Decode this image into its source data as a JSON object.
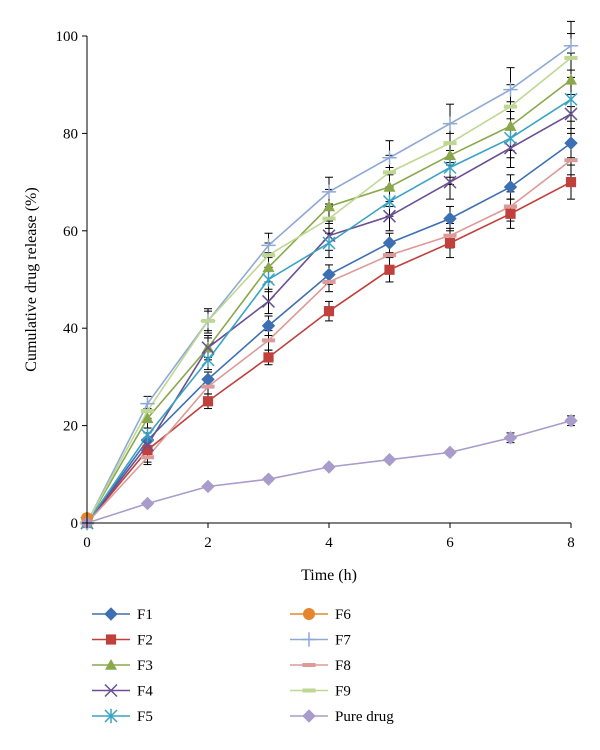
{
  "chart_data": {
    "type": "line",
    "title": "",
    "xlabel": "Time (h)",
    "ylabel": "Cumulative drug release (%)",
    "xlim": [
      0,
      8
    ],
    "ylim": [
      0,
      100
    ],
    "x_ticks": [
      "0",
      "2",
      "4",
      "6",
      "8"
    ],
    "y_ticks": [
      "0",
      "20",
      "40",
      "60",
      "80",
      "100"
    ],
    "grid": false,
    "legend_placement": "bottom",
    "x": [
      0,
      1,
      2,
      3,
      4,
      5,
      6,
      7,
      8
    ],
    "series": [
      {
        "name": "F1",
        "color": "#3d6fb3",
        "marker": "diamond",
        "values": [
          0,
          17,
          29.5,
          40.5,
          51,
          57.5,
          62.5,
          69,
          78
        ],
        "errors": [
          0,
          1.5,
          1.5,
          2,
          2,
          2,
          2.5,
          2.5,
          3
        ]
      },
      {
        "name": "F2",
        "color": "#c0403c",
        "marker": "square",
        "values": [
          0,
          15,
          25,
          34,
          43.5,
          52,
          57.5,
          63.5,
          70
        ],
        "errors": [
          0,
          2.5,
          1.5,
          1.5,
          2,
          2.5,
          3,
          3,
          3.5
        ]
      },
      {
        "name": "F3",
        "color": "#8aa84b",
        "marker": "triangle",
        "values": [
          0,
          21.5,
          36,
          52.5,
          65,
          69,
          75.5,
          81.5,
          91
        ],
        "errors": [
          0,
          2,
          2.5,
          3,
          3.5,
          4,
          4.5,
          5,
          5.5
        ]
      },
      {
        "name": "F4",
        "color": "#6a4f93",
        "marker": "x",
        "values": [
          0,
          16,
          36,
          45.5,
          59,
          63,
          70,
          77,
          84
        ],
        "errors": [
          0,
          1.5,
          2,
          2.5,
          3,
          3,
          3.5,
          4,
          4
        ]
      },
      {
        "name": "F5",
        "color": "#3aa3c3",
        "marker": "star",
        "values": [
          0,
          18,
          33.5,
          50,
          57.5,
          66,
          73,
          79,
          87
        ],
        "errors": [
          0,
          1.5,
          2,
          2.5,
          3,
          3,
          3.5,
          4,
          4.5
        ]
      },
      {
        "name": "F6",
        "color": "#e5862f",
        "marker": "circle",
        "values": [
          1
        ],
        "x": [
          0
        ]
      },
      {
        "name": "F7",
        "color": "#8fa9d6",
        "marker": "plus",
        "values": [
          0,
          24.5,
          41.5,
          57,
          68,
          75,
          82,
          89,
          98
        ],
        "errors": [
          0,
          1.5,
          2.5,
          2.5,
          3,
          3.5,
          4,
          4.5,
          5
        ]
      },
      {
        "name": "F8",
        "color": "#dc9a99",
        "marker": "dash",
        "values": [
          0,
          13.5,
          28,
          37.5,
          49.5,
          55,
          59,
          65,
          74.5
        ],
        "errors": [
          0,
          1.5,
          1.5,
          2,
          2,
          2.5,
          2.5,
          3,
          3
        ]
      },
      {
        "name": "F9",
        "color": "#bfd792",
        "marker": "dash",
        "values": [
          0,
          23,
          41.5,
          55,
          62.5,
          72,
          78,
          85.5,
          95.5
        ],
        "errors": [
          0,
          1.5,
          2,
          2.5,
          3,
          3.5,
          4,
          4.5,
          5
        ]
      },
      {
        "name": "Pure drug",
        "color": "#a99bcc",
        "marker": "diamond",
        "values": [
          0,
          4,
          7.5,
          9,
          11.5,
          13,
          14.5,
          17.5,
          21
        ],
        "errors": [
          0,
          0.5,
          0.5,
          0.5,
          0.5,
          0.5,
          0.5,
          1,
          1
        ]
      }
    ]
  }
}
